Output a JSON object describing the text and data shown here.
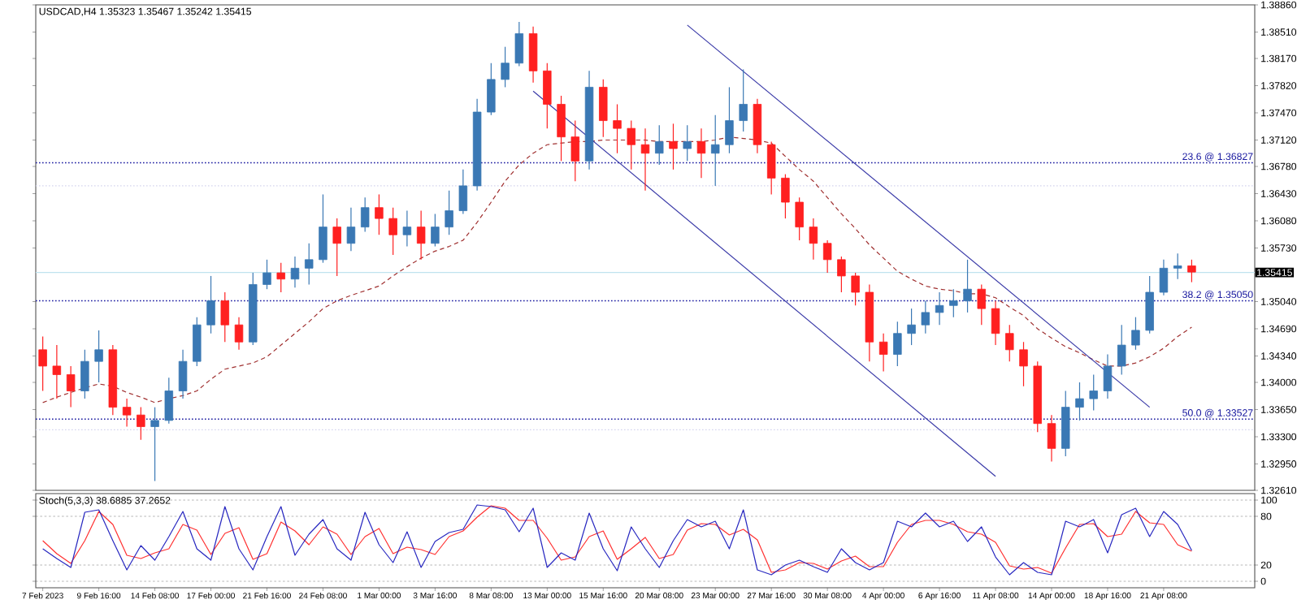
{
  "chart_data": [
    {
      "type": "candlestick",
      "title": "USDCAD,H4 1.35323 1.35467 1.35242 1.35415",
      "categories": [
        null,
        null,
        null,
        null,
        null,
        null,
        null,
        null,
        null,
        null,
        null,
        null,
        null,
        null,
        null,
        null,
        null,
        null,
        null,
        null,
        null,
        null,
        null,
        null,
        null,
        null,
        null,
        null,
        null,
        null,
        null,
        null,
        null,
        null,
        null,
        null,
        null,
        null,
        null,
        null,
        null,
        null,
        null,
        null,
        null,
        null,
        null,
        null,
        null,
        null,
        null,
        null,
        null,
        null,
        null,
        null,
        null,
        null,
        null,
        null,
        null,
        null,
        null,
        null,
        null,
        null,
        null,
        null,
        null,
        null,
        null,
        null,
        null,
        null,
        null,
        null,
        null,
        null,
        null,
        null,
        null,
        null,
        null
      ],
      "series": [
        {
          "type": "line",
          "color": "#a03030",
          "line_style": "dashed",
          "values": [
            1.3374,
            1.3381,
            1.3387,
            1.3393,
            1.3398,
            1.3395,
            1.3387,
            1.3381,
            1.3374,
            1.3379,
            1.3383,
            1.3389,
            1.3404,
            1.3417,
            1.3421,
            1.3425,
            1.3433,
            1.3448,
            1.3463,
            1.3478,
            1.3495,
            1.3505,
            1.3512,
            1.3518,
            1.3524,
            1.3537,
            1.3549,
            1.356,
            1.3569,
            1.3575,
            1.3583,
            1.3606,
            1.3632,
            1.3659,
            1.368,
            1.3695,
            1.3706,
            1.3708,
            1.371,
            1.371,
            1.3712,
            1.3712,
            1.3712,
            1.3712,
            1.371,
            1.371,
            1.371,
            1.371,
            1.3712,
            1.3716,
            1.3714,
            1.3712,
            1.3708,
            1.3691,
            1.3674,
            1.3659,
            1.3638,
            1.3617,
            1.3598,
            1.3577,
            1.356,
            1.3543,
            1.3533,
            1.3524,
            1.352,
            1.3518,
            1.3514,
            1.3514,
            1.3509,
            1.3497,
            1.3486,
            1.3469,
            1.3457,
            1.3446,
            1.3438,
            1.3429,
            1.3421,
            1.3421,
            1.3425,
            1.3433,
            1.3444,
            1.3459,
            1.3471
          ]
        },
        {
          "type": "line",
          "color": "#3a3aa8",
          "line_style": "solid",
          "values": [
            null,
            null,
            null,
            null,
            null,
            null,
            null,
            null,
            null,
            null,
            null,
            null,
            null,
            null,
            null,
            null,
            null,
            null,
            null,
            null,
            null,
            null,
            null,
            null,
            null,
            null,
            null,
            null,
            null,
            null,
            null,
            null,
            null,
            null,
            null,
            null,
            null,
            null,
            null,
            null,
            null,
            null,
            null,
            null,
            null,
            null,
            1.386,
            null,
            null,
            null,
            null,
            null,
            null,
            null,
            null,
            null,
            null,
            null,
            null,
            null,
            null,
            null,
            null,
            null,
            null,
            null,
            null,
            null,
            null,
            null,
            null,
            null,
            null,
            null,
            null,
            null,
            null,
            null,
            null,
            1.3368,
            null,
            null,
            null
          ]
        },
        {
          "type": "line",
          "color": "#3a3aa8",
          "line_style": "solid",
          "values": [
            null,
            null,
            null,
            null,
            null,
            null,
            null,
            null,
            null,
            null,
            null,
            null,
            null,
            null,
            null,
            null,
            null,
            null,
            null,
            null,
            null,
            null,
            null,
            null,
            null,
            null,
            null,
            null,
            null,
            null,
            null,
            null,
            null,
            null,
            null,
            1.3775,
            null,
            null,
            null,
            null,
            null,
            null,
            null,
            null,
            null,
            null,
            null,
            null,
            null,
            null,
            null,
            null,
            null,
            null,
            null,
            null,
            null,
            null,
            null,
            null,
            null,
            null,
            null,
            null,
            null,
            null,
            null,
            null,
            1.3279,
            null,
            null,
            null,
            null,
            null,
            null,
            null,
            null,
            null,
            null,
            null,
            null,
            null,
            null
          ]
        },
        {
          "type": "candlestick",
          "ohlc": [
            [
              1.3442,
              1.3459,
              1.3389,
              1.3421
            ],
            [
              1.3421,
              1.3448,
              1.3379,
              1.341
            ],
            [
              1.341,
              1.3421,
              1.3368,
              1.3389
            ],
            [
              1.3389,
              1.3442,
              1.3379,
              1.3427
            ],
            [
              1.3427,
              1.3467,
              1.34,
              1.3442
            ],
            [
              1.3442,
              1.3448,
              1.3358,
              1.3368
            ],
            [
              1.3368,
              1.3379,
              1.3343,
              1.3358
            ],
            [
              1.3358,
              1.3368,
              1.3326,
              1.3343
            ],
            [
              1.3343,
              1.3368,
              1.3273,
              1.3351
            ],
            [
              1.3351,
              1.3406,
              1.3347,
              1.3389
            ],
            [
              1.3389,
              1.3442,
              1.3379,
              1.3427
            ],
            [
              1.3427,
              1.3484,
              1.3421,
              1.3474
            ],
            [
              1.3474,
              1.3537,
              1.3463,
              1.3505
            ],
            [
              1.3505,
              1.3516,
              1.3452,
              1.3474
            ],
            [
              1.3474,
              1.3484,
              1.3442,
              1.3452
            ],
            [
              1.3452,
              1.3541,
              1.3448,
              1.3526
            ],
            [
              1.3526,
              1.3558,
              1.352,
              1.3541
            ],
            [
              1.3541,
              1.3554,
              1.3516,
              1.3533
            ],
            [
              1.3533,
              1.3562,
              1.3522,
              1.3547
            ],
            [
              1.3547,
              1.3579,
              1.3526,
              1.3558
            ],
            [
              1.3558,
              1.3642,
              1.3554,
              1.36
            ],
            [
              1.36,
              1.3611,
              1.3537,
              1.3579
            ],
            [
              1.3579,
              1.3625,
              1.3569,
              1.36
            ],
            [
              1.36,
              1.3638,
              1.3594,
              1.3625
            ],
            [
              1.3625,
              1.3642,
              1.359,
              1.3611
            ],
            [
              1.3611,
              1.3625,
              1.3564,
              1.359
            ],
            [
              1.359,
              1.3621,
              1.3575,
              1.36
            ],
            [
              1.36,
              1.3621,
              1.3558,
              1.3579
            ],
            [
              1.3579,
              1.3617,
              1.3575,
              1.36
            ],
            [
              1.36,
              1.3647,
              1.359,
              1.3621
            ],
            [
              1.3621,
              1.3674,
              1.3617,
              1.3653
            ],
            [
              1.3653,
              1.3765,
              1.3647,
              1.3748
            ],
            [
              1.3748,
              1.3811,
              1.3744,
              1.379
            ],
            [
              1.379,
              1.3832,
              1.378,
              1.3811
            ],
            [
              1.3811,
              1.3864,
              1.3807,
              1.3849
            ],
            [
              1.3849,
              1.3858,
              1.3786,
              1.3801
            ],
            [
              1.3801,
              1.3811,
              1.3727,
              1.3758
            ],
            [
              1.3758,
              1.3769,
              1.3685,
              1.3716
            ],
            [
              1.3716,
              1.3737,
              1.3659,
              1.3685
            ],
            [
              1.3685,
              1.3801,
              1.3674,
              1.378
            ],
            [
              1.378,
              1.379,
              1.3716,
              1.3737
            ],
            [
              1.3737,
              1.3758,
              1.3695,
              1.3727
            ],
            [
              1.3727,
              1.3737,
              1.3674,
              1.3706
            ],
            [
              1.3706,
              1.3727,
              1.3647,
              1.3695
            ],
            [
              1.3695,
              1.3731,
              1.368,
              1.371
            ],
            [
              1.371,
              1.3733,
              1.3674,
              1.3701
            ],
            [
              1.3701,
              1.3731,
              1.3685,
              1.371
            ],
            [
              1.371,
              1.3727,
              1.3663,
              1.3695
            ],
            [
              1.3695,
              1.3744,
              1.3653,
              1.3706
            ],
            [
              1.3706,
              1.378,
              1.3695,
              1.3737
            ],
            [
              1.3737,
              1.3803,
              1.3723,
              1.3758
            ],
            [
              1.3758,
              1.3765,
              1.3695,
              1.3706
            ],
            [
              1.3706,
              1.371,
              1.3642,
              1.3663
            ],
            [
              1.3663,
              1.3668,
              1.3611,
              1.3632
            ],
            [
              1.3632,
              1.3638,
              1.3583,
              1.36
            ],
            [
              1.36,
              1.3611,
              1.3558,
              1.3579
            ],
            [
              1.3579,
              1.3583,
              1.3541,
              1.3558
            ],
            [
              1.3558,
              1.3562,
              1.3516,
              1.3537
            ],
            [
              1.3537,
              1.3541,
              1.3499,
              1.3516
            ],
            [
              1.3516,
              1.3526,
              1.3427,
              1.3452
            ],
            [
              1.3452,
              1.3463,
              1.3414,
              1.3436
            ],
            [
              1.3436,
              1.3478,
              1.3421,
              1.3463
            ],
            [
              1.3463,
              1.3495,
              1.3448,
              1.3474
            ],
            [
              1.3474,
              1.3505,
              1.3463,
              1.349
            ],
            [
              1.349,
              1.3516,
              1.3474,
              1.3499
            ],
            [
              1.3499,
              1.352,
              1.3484,
              1.3505
            ],
            [
              1.3505,
              1.3558,
              1.349,
              1.352
            ],
            [
              1.352,
              1.3526,
              1.3474,
              1.3495
            ],
            [
              1.3495,
              1.3505,
              1.3448,
              1.3463
            ],
            [
              1.3463,
              1.3474,
              1.3427,
              1.3442
            ],
            [
              1.3442,
              1.3452,
              1.3395,
              1.3421
            ],
            [
              1.3421,
              1.3427,
              1.3336,
              1.3347
            ],
            [
              1.3347,
              1.3358,
              1.3298,
              1.3315
            ],
            [
              1.3315,
              1.3389,
              1.3305,
              1.3368
            ],
            [
              1.3368,
              1.34,
              1.3351,
              1.3379
            ],
            [
              1.3379,
              1.341,
              1.3364,
              1.3389
            ],
            [
              1.3389,
              1.3436,
              1.3379,
              1.3421
            ],
            [
              1.3421,
              1.3474,
              1.341,
              1.3448
            ],
            [
              1.3448,
              1.3484,
              1.3442,
              1.3467
            ],
            [
              1.3467,
              1.3537,
              1.3463,
              1.3516
            ],
            [
              1.3516,
              1.3558,
              1.3512,
              1.3547
            ],
            [
              1.3547,
              1.3566,
              1.3533,
              1.355
            ],
            [
              1.355,
              1.3558,
              1.3529,
              1.3542
            ]
          ],
          "colors": [
            "#ff2020",
            "#ff2020",
            "#ff2020",
            "#3a78b4",
            "#3a78b4",
            "#ff2020",
            "#ff2020",
            "#ff2020",
            "#3a78b4",
            "#3a78b4",
            "#3a78b4",
            "#3a78b4",
            "#3a78b4",
            "#ff2020",
            "#ff2020",
            "#3a78b4",
            "#3a78b4",
            "#ff2020",
            "#3a78b4",
            "#3a78b4",
            "#3a78b4",
            "#ff2020",
            "#3a78b4",
            "#3a78b4",
            "#ff2020",
            "#ff2020",
            "#3a78b4",
            "#ff2020",
            "#3a78b4",
            "#3a78b4",
            "#3a78b4",
            "#3a78b4",
            "#3a78b4",
            "#3a78b4",
            "#3a78b4",
            "#ff2020",
            "#ff2020",
            "#ff2020",
            "#ff2020",
            "#3a78b4",
            "#ff2020",
            "#ff2020",
            "#ff2020",
            "#ff2020",
            "#3a78b4",
            "#ff2020",
            "#3a78b4",
            "#ff2020",
            "#3a78b4",
            "#3a78b4",
            "#3a78b4",
            "#ff2020",
            "#ff2020",
            "#ff2020",
            "#ff2020",
            "#ff2020",
            "#ff2020",
            "#ff2020",
            "#ff2020",
            "#ff2020",
            "#ff2020",
            "#3a78b4",
            "#3a78b4",
            "#3a78b4",
            "#3a78b4",
            "#3a78b4",
            "#3a78b4",
            "#ff2020",
            "#ff2020",
            "#ff2020",
            "#ff2020",
            "#ff2020",
            "#ff2020",
            "#3a78b4",
            "#3a78b4",
            "#3a78b4",
            "#3a78b4",
            "#3a78b4",
            "#3a78b4",
            "#3a78b4",
            "#3a78b4",
            "#3a78b4",
            "#ff2020"
          ]
        }
      ],
      "ylim": [
        1.3261,
        1.3886
      ],
      "yticks": [
        {
          "value": 1.3886,
          "label": "1.38860"
        },
        {
          "value": 1.3851,
          "label": "1.38510"
        },
        {
          "value": 1.3817,
          "label": "1.38170"
        },
        {
          "value": 1.3782,
          "label": "1.37820"
        },
        {
          "value": 1.3747,
          "label": "1.37470"
        },
        {
          "value": 1.3712,
          "label": "1.37120"
        },
        {
          "value": 1.3678,
          "label": "1.36780"
        },
        {
          "value": 1.3643,
          "label": "1.36430"
        },
        {
          "value": 1.3608,
          "label": "1.36080"
        },
        {
          "value": 1.3573,
          "label": "1.35730"
        },
        {
          "value": 1.3504,
          "label": "1.35040"
        },
        {
          "value": 1.3469,
          "label": "1.34690"
        },
        {
          "value": 1.3434,
          "label": "1.34340"
        },
        {
          "value": 1.34,
          "label": "1.34000"
        },
        {
          "value": 1.3365,
          "label": "1.33650"
        },
        {
          "value": 1.333,
          "label": "1.33300"
        },
        {
          "value": 1.3295,
          "label": "1.32950"
        },
        {
          "value": 1.3261,
          "label": "1.32610"
        }
      ],
      "ref_lines": [
        {
          "axis": "y",
          "value": 1.3653,
          "color": "#d4d4ee",
          "line_style": "dotted"
        },
        {
          "axis": "y",
          "value": 1.3339,
          "color": "#d4d4ee",
          "line_style": "dotted"
        },
        {
          "axis": "y",
          "value": 1.36827,
          "label": "23.6 @ 1.36827",
          "color": "#1a1aa0",
          "line_style": "dotted"
        },
        {
          "axis": "y",
          "value": 1.3505,
          "label": "38.2 @ 1.35050",
          "color": "#1a1aa0",
          "line_style": "dotted"
        },
        {
          "axis": "y",
          "value": 1.33527,
          "label": "50.0 @ 1.33527",
          "color": "#1a1aa0",
          "line_style": "dotted"
        },
        {
          "axis": "y",
          "value": 1.35415,
          "label": "1.35415",
          "color": "#bfe3ee",
          "line_style": "solid"
        }
      ],
      "tick_labels": "y"
    },
    {
      "type": "line",
      "title": "Stoch(5,3,3) 38.6885 37.2652",
      "categories": [
        "7 Feb 2023",
        null,
        null,
        null,
        "9 Feb 16:00",
        null,
        null,
        null,
        "14 Feb 08:00",
        null,
        null,
        null,
        "17 Feb 00:00",
        null,
        null,
        null,
        "21 Feb 16:00",
        null,
        null,
        null,
        "24 Feb 08:00",
        null,
        null,
        null,
        "1 Mar 00:00",
        null,
        null,
        null,
        "3 Mar 16:00",
        null,
        null,
        null,
        "8 Mar 08:00",
        null,
        null,
        null,
        "13 Mar 00:00",
        null,
        null,
        null,
        "15 Mar 16:00",
        null,
        null,
        null,
        "20 Mar 08:00",
        null,
        null,
        null,
        "23 Mar 00:00",
        null,
        null,
        null,
        "27 Mar 16:00",
        null,
        null,
        null,
        "30 Mar 08:00",
        null,
        null,
        null,
        "4 Apr 00:00",
        null,
        null,
        null,
        "6 Apr 16:00",
        null,
        null,
        null,
        "11 Apr 08:00",
        null,
        null,
        null,
        "14 Apr 00:00",
        null,
        null,
        null,
        "18 Apr 16:00",
        null,
        null,
        null,
        "21 Apr 08:00",
        null,
        null
      ],
      "series": [
        {
          "color": "#ff3030",
          "values": [
            50,
            34,
            22,
            50,
            86,
            70,
            32,
            28,
            35,
            40,
            70,
            63,
            33,
            59,
            66,
            27,
            34,
            73,
            62,
            45,
            67,
            58,
            33,
            55,
            65,
            34,
            42,
            39,
            33,
            55,
            62,
            79,
            93,
            90,
            75,
            75,
            53,
            26,
            30,
            55,
            62,
            27,
            40,
            54,
            28,
            33,
            63,
            71,
            70,
            57,
            64,
            51,
            11,
            14,
            23,
            22,
            15,
            25,
            31,
            18,
            18,
            48,
            70,
            75,
            75,
            70,
            61,
            58,
            48,
            19,
            15,
            17,
            10,
            41,
            70,
            71,
            55,
            58,
            86,
            72,
            70,
            45,
            37
          ]
        },
        {
          "color": "#2828c0",
          "values": [
            40,
            28,
            17,
            85,
            88,
            50,
            14,
            44,
            26,
            55,
            86,
            40,
            26,
            92,
            40,
            14,
            55,
            92,
            32,
            58,
            76,
            40,
            26,
            85,
            45,
            23,
            61,
            17,
            49,
            60,
            64,
            94,
            92,
            88,
            61,
            90,
            17,
            35,
            26,
            84,
            40,
            13,
            67,
            40,
            17,
            50,
            76,
            67,
            74,
            40,
            88,
            14,
            8,
            20,
            26,
            18,
            11,
            40,
            23,
            14,
            23,
            74,
            67,
            84,
            67,
            74,
            49,
            67,
            30,
            8,
            23,
            11,
            8,
            74,
            67,
            76,
            35,
            82,
            90,
            55,
            86,
            70,
            38
          ]
        }
      ],
      "ylim": [
        -8,
        108
      ],
      "yticks": [
        0,
        20,
        80,
        100
      ],
      "grid": "y"
    }
  ]
}
